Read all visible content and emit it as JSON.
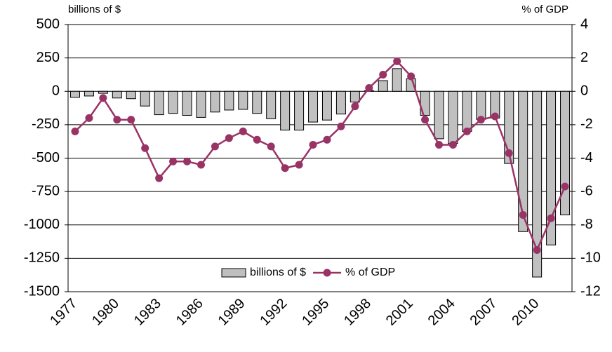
{
  "chart_data": {
    "type": "bar-line",
    "y_label": "billions of $",
    "y2_label": "% of GDP",
    "categories": [
      "1977",
      null,
      null,
      "1980",
      null,
      null,
      "1983",
      null,
      null,
      "1986",
      null,
      null,
      "1989",
      null,
      null,
      "1992",
      null,
      null,
      "1995",
      null,
      null,
      "1998",
      null,
      null,
      "2001",
      null,
      null,
      "2004",
      null,
      null,
      "2007",
      null,
      null,
      "2010",
      null,
      null
    ],
    "series": [
      {
        "name": "billions of $",
        "type": "bar",
        "color": "#c0c0c0",
        "values": [
          -45,
          -35,
          -15,
          -50,
          -55,
          -110,
          -175,
          -165,
          -180,
          -195,
          -155,
          -140,
          -135,
          -165,
          -205,
          -290,
          -290,
          -230,
          -215,
          -170,
          -80,
          5,
          80,
          170,
          95,
          -180,
          -355,
          -390,
          -300,
          -210,
          -200,
          -540,
          -1050,
          -1390,
          -1150,
          -925
        ]
      },
      {
        "name": "% of GDP",
        "type": "line",
        "axis": "y2",
        "color": "#993366",
        "values": [
          -2.4,
          -1.6,
          -0.4,
          -1.7,
          -1.7,
          -3.4,
          -5.2,
          -4.2,
          -4.2,
          -4.4,
          -3.3,
          -2.8,
          -2.4,
          -2.9,
          -3.3,
          -4.6,
          -4.4,
          -3.2,
          -2.9,
          -2.1,
          -0.9,
          0.2,
          1.0,
          1.8,
          0.9,
          -1.7,
          -3.2,
          -3.2,
          -2.4,
          -1.7,
          -1.5,
          -3.7,
          -7.4,
          -9.5,
          -7.6,
          -5.7
        ]
      }
    ],
    "ylim": [
      -1500,
      500
    ],
    "yticks": [
      500,
      250,
      0,
      -250,
      -500,
      -750,
      -1000,
      -1250,
      -1500
    ],
    "y2lim": [
      -12,
      4
    ],
    "y2ticks": [
      4,
      2,
      0,
      -2,
      -4,
      -6,
      -8,
      -10,
      -12
    ],
    "grid": true,
    "legend": "bottom"
  }
}
